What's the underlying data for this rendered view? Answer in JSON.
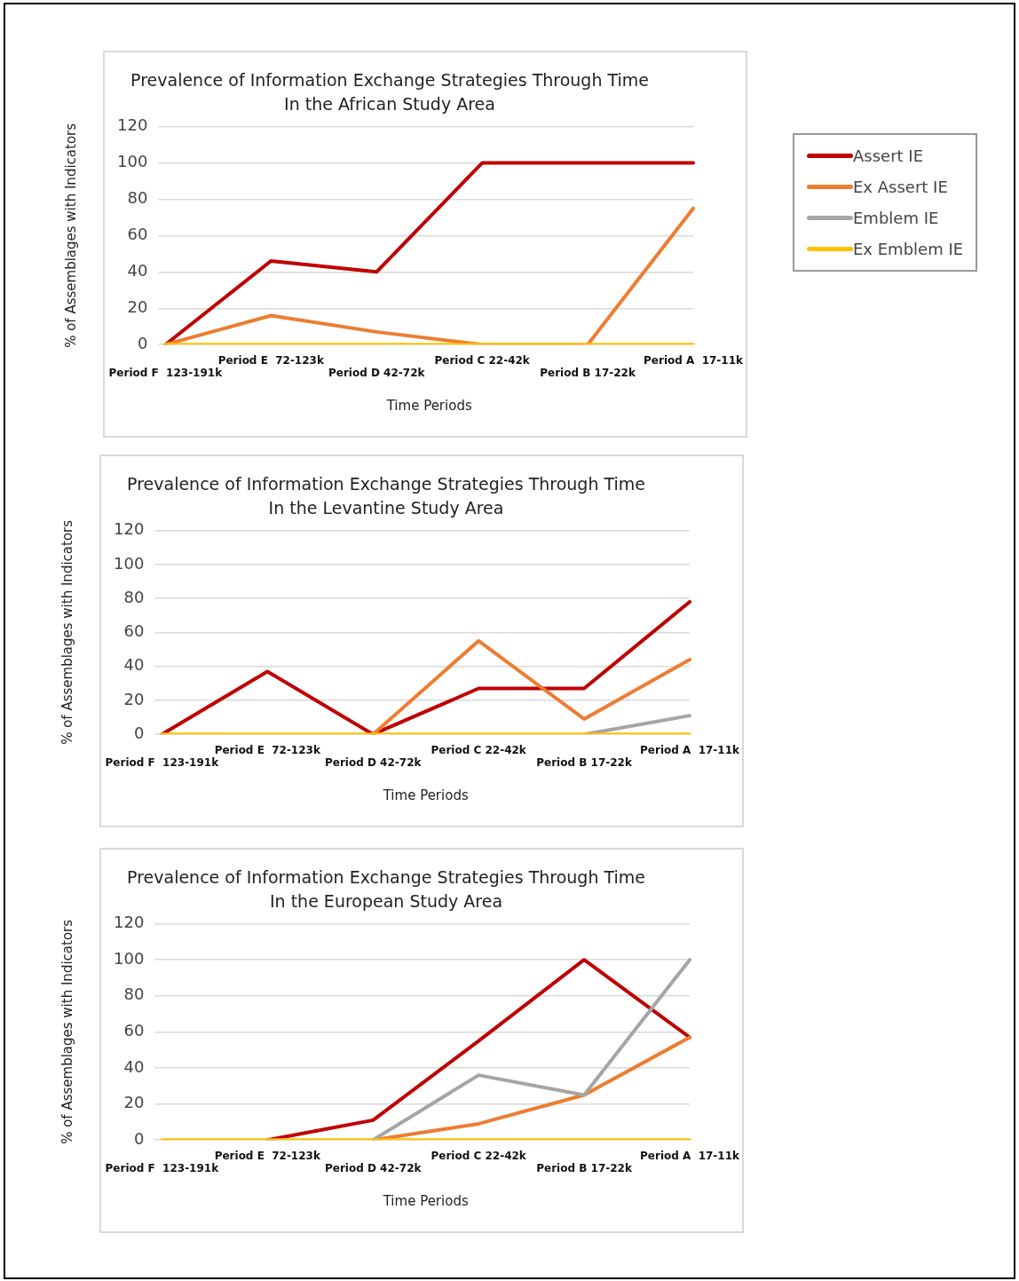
{
  "chart_data": [
    {
      "type": "line",
      "title": "Prevalence of Information Exchange Strategies Through Time",
      "subtitle": "In the African Study Area",
      "xlabel": "Time Periods",
      "ylabel": "% of Assemblages with Indicators",
      "categories": [
        "Period F  123-191k",
        "Period E  72-123k",
        "Period D 42-72k",
        "Period C 22-42k",
        "Period B 17-22k",
        "Period A  17-11k"
      ],
      "ylim": [
        0,
        120
      ],
      "yticks": [
        0,
        20,
        40,
        60,
        80,
        100,
        120
      ],
      "grid": "y",
      "legend": "right",
      "marker": "none",
      "series": [
        {
          "name": "Assert IE",
          "color": "#c00000",
          "values": [
            0,
            46,
            40,
            100,
            100,
            100
          ]
        },
        {
          "name": "Ex Assert IE",
          "color": "#ed7d31",
          "values": [
            0,
            16,
            7,
            0,
            0,
            75
          ]
        },
        {
          "name": "Emblem IE",
          "color": "#a5a5a5",
          "values": [
            null,
            null,
            null,
            null,
            null,
            null
          ]
        },
        {
          "name": "Ex Emblem IE",
          "color": "#ffc000",
          "values": [
            0,
            0,
            0,
            0,
            0,
            0
          ]
        }
      ]
    },
    {
      "type": "line",
      "title": "Prevalence of Information Exchange Strategies Through Time",
      "subtitle": "In the Levantine Study Area",
      "xlabel": "Time Periods",
      "ylabel": "% of Assemblages with Indicators",
      "categories": [
        "Period F  123-191k",
        "Period E  72-123k",
        "Period D 42-72k",
        "Period C 22-42k",
        "Period B 17-22k",
        "Period A  17-11k"
      ],
      "ylim": [
        0,
        120
      ],
      "yticks": [
        0,
        20,
        40,
        60,
        80,
        100,
        120
      ],
      "grid": "y",
      "marker": "none",
      "series": [
        {
          "color": "#c00000",
          "values": [
            0,
            37,
            0,
            27,
            27,
            78
          ]
        },
        {
          "color": "#ed7d31",
          "values": [
            null,
            null,
            0,
            55,
            9,
            44
          ]
        },
        {
          "color": "#a5a5a5",
          "values": [
            null,
            null,
            null,
            null,
            0,
            11
          ]
        },
        {
          "color": "#ffc000",
          "values": [
            0,
            0,
            0,
            0,
            0,
            0
          ]
        }
      ]
    },
    {
      "type": "line",
      "title": "Prevalence of Information Exchange Strategies Through Time",
      "subtitle": "In the European Study Area",
      "xlabel": "Time Periods",
      "ylabel": "% of Assemblages with Indicators",
      "categories": [
        "Period F  123-191k",
        "Period E  72-123k",
        "Period D 42-72k",
        "Period C 22-42k",
        "Period B 17-22k",
        "Period A  17-11k"
      ],
      "ylim": [
        0,
        120
      ],
      "yticks": [
        0,
        20,
        40,
        60,
        80,
        100,
        120
      ],
      "grid": "y",
      "marker": "none",
      "series": [
        {
          "color": "#c00000",
          "values": [
            null,
            0,
            11,
            55,
            100,
            57
          ]
        },
        {
          "color": "#ed7d31",
          "values": [
            null,
            null,
            0,
            9,
            25,
            57
          ]
        },
        {
          "color": "#a5a5a5",
          "values": [
            null,
            null,
            0,
            36,
            25,
            100
          ]
        },
        {
          "color": "#ffc000",
          "values": [
            0,
            0,
            0,
            0,
            0,
            0
          ]
        }
      ]
    }
  ]
}
